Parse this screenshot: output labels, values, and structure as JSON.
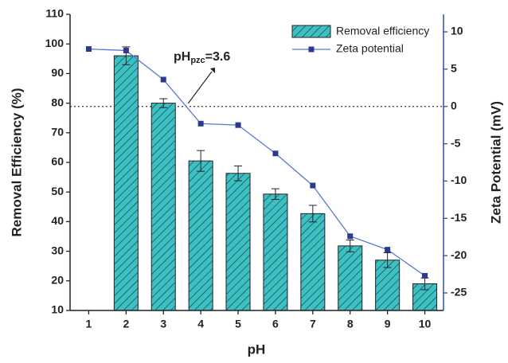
{
  "chart_data": {
    "type": "bar",
    "x_label": "pH",
    "y_label": "Removal Efficiency (%)",
    "y2_label": "Zeta Potential  (mV)",
    "categories": [
      "1",
      "2",
      "3",
      "4",
      "5",
      "6",
      "7",
      "8",
      "9",
      "10"
    ],
    "series": [
      {
        "name": "Removal efficiency",
        "type": "bar",
        "color": "#3cc0c4",
        "values": [
          null,
          96,
          80,
          60.5,
          56.3,
          49.3,
          42.7,
          31.8,
          27,
          19
        ],
        "errors": [
          null,
          3,
          1.5,
          3.5,
          2.5,
          1.8,
          2.8,
          2,
          2.5,
          2
        ]
      },
      {
        "name": "Zeta potential",
        "type": "line",
        "color": "#5a78d0",
        "marker_color": "#2b3a8f",
        "axis": "y2",
        "values": [
          7.7,
          7.5,
          3.6,
          -2.3,
          -2.5,
          -6.3,
          -10.6,
          -17.4,
          -19.2,
          -22.7
        ]
      }
    ],
    "ylim": [
      10,
      110
    ],
    "yticks": [
      10,
      20,
      30,
      40,
      50,
      60,
      70,
      80,
      90,
      100,
      110
    ],
    "y2lim": [
      -27.35,
      12.35
    ],
    "y2ticks": [
      -25,
      -20,
      -15,
      -10,
      -5,
      0,
      5,
      10
    ],
    "y2_color": "#2f4fa8",
    "reference_line_y2": 0,
    "annotation": {
      "text_main": "pH",
      "text_sub": "pzc",
      "text_rest": "=3.6",
      "x": 3.6
    },
    "legend_position": "upper right"
  }
}
